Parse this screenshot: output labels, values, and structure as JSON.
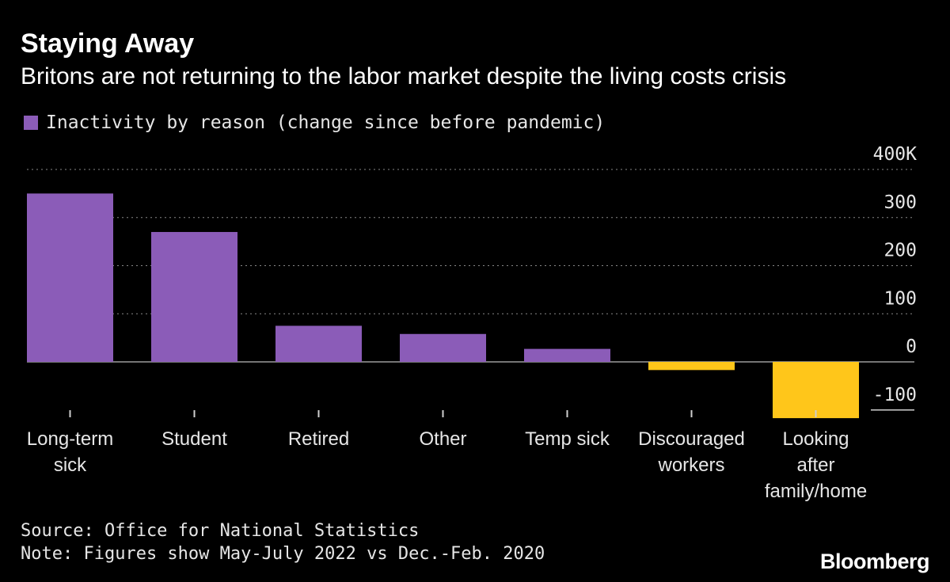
{
  "title": "Staying Away",
  "subtitle": "Britons are not returning to the labor market despite the living costs crisis",
  "legend": {
    "label": "Inactivity by reason (change since before pandemic)",
    "color": "#8b5cb8"
  },
  "footer": {
    "source": "Source: Office for National Statistics",
    "note": "Note: Figures show May-July 2022 vs Dec.-Feb. 2020",
    "brand": "Bloomberg"
  },
  "colors": {
    "positive": "#8b5cb8",
    "negative": "#ffc61a",
    "background": "#000000",
    "grid": "#888888"
  },
  "chart_data": {
    "type": "bar",
    "categories": [
      [
        "Long-term",
        "sick"
      ],
      [
        "Student"
      ],
      [
        "Retired"
      ],
      [
        "Other"
      ],
      [
        "Temp sick"
      ],
      [
        "Discouraged",
        "workers"
      ],
      [
        "Looking",
        "after",
        "family/home"
      ]
    ],
    "series": [
      {
        "name": "Inactivity by reason (change since before pandemic)",
        "values": [
          350,
          270,
          75,
          58,
          27,
          -17,
          -117
        ]
      }
    ],
    "ylim": [
      -100,
      400
    ],
    "yticks": [
      {
        "value": 400,
        "label": "400K"
      },
      {
        "value": 300,
        "label": "300"
      },
      {
        "value": 200,
        "label": "200"
      },
      {
        "value": 100,
        "label": "100"
      },
      {
        "value": 0,
        "label": "0"
      },
      {
        "value": -100,
        "label": "-100"
      }
    ],
    "grid": true,
    "gridStyle": "dotted",
    "yaxisPosition": "right",
    "legend": "top-left"
  }
}
